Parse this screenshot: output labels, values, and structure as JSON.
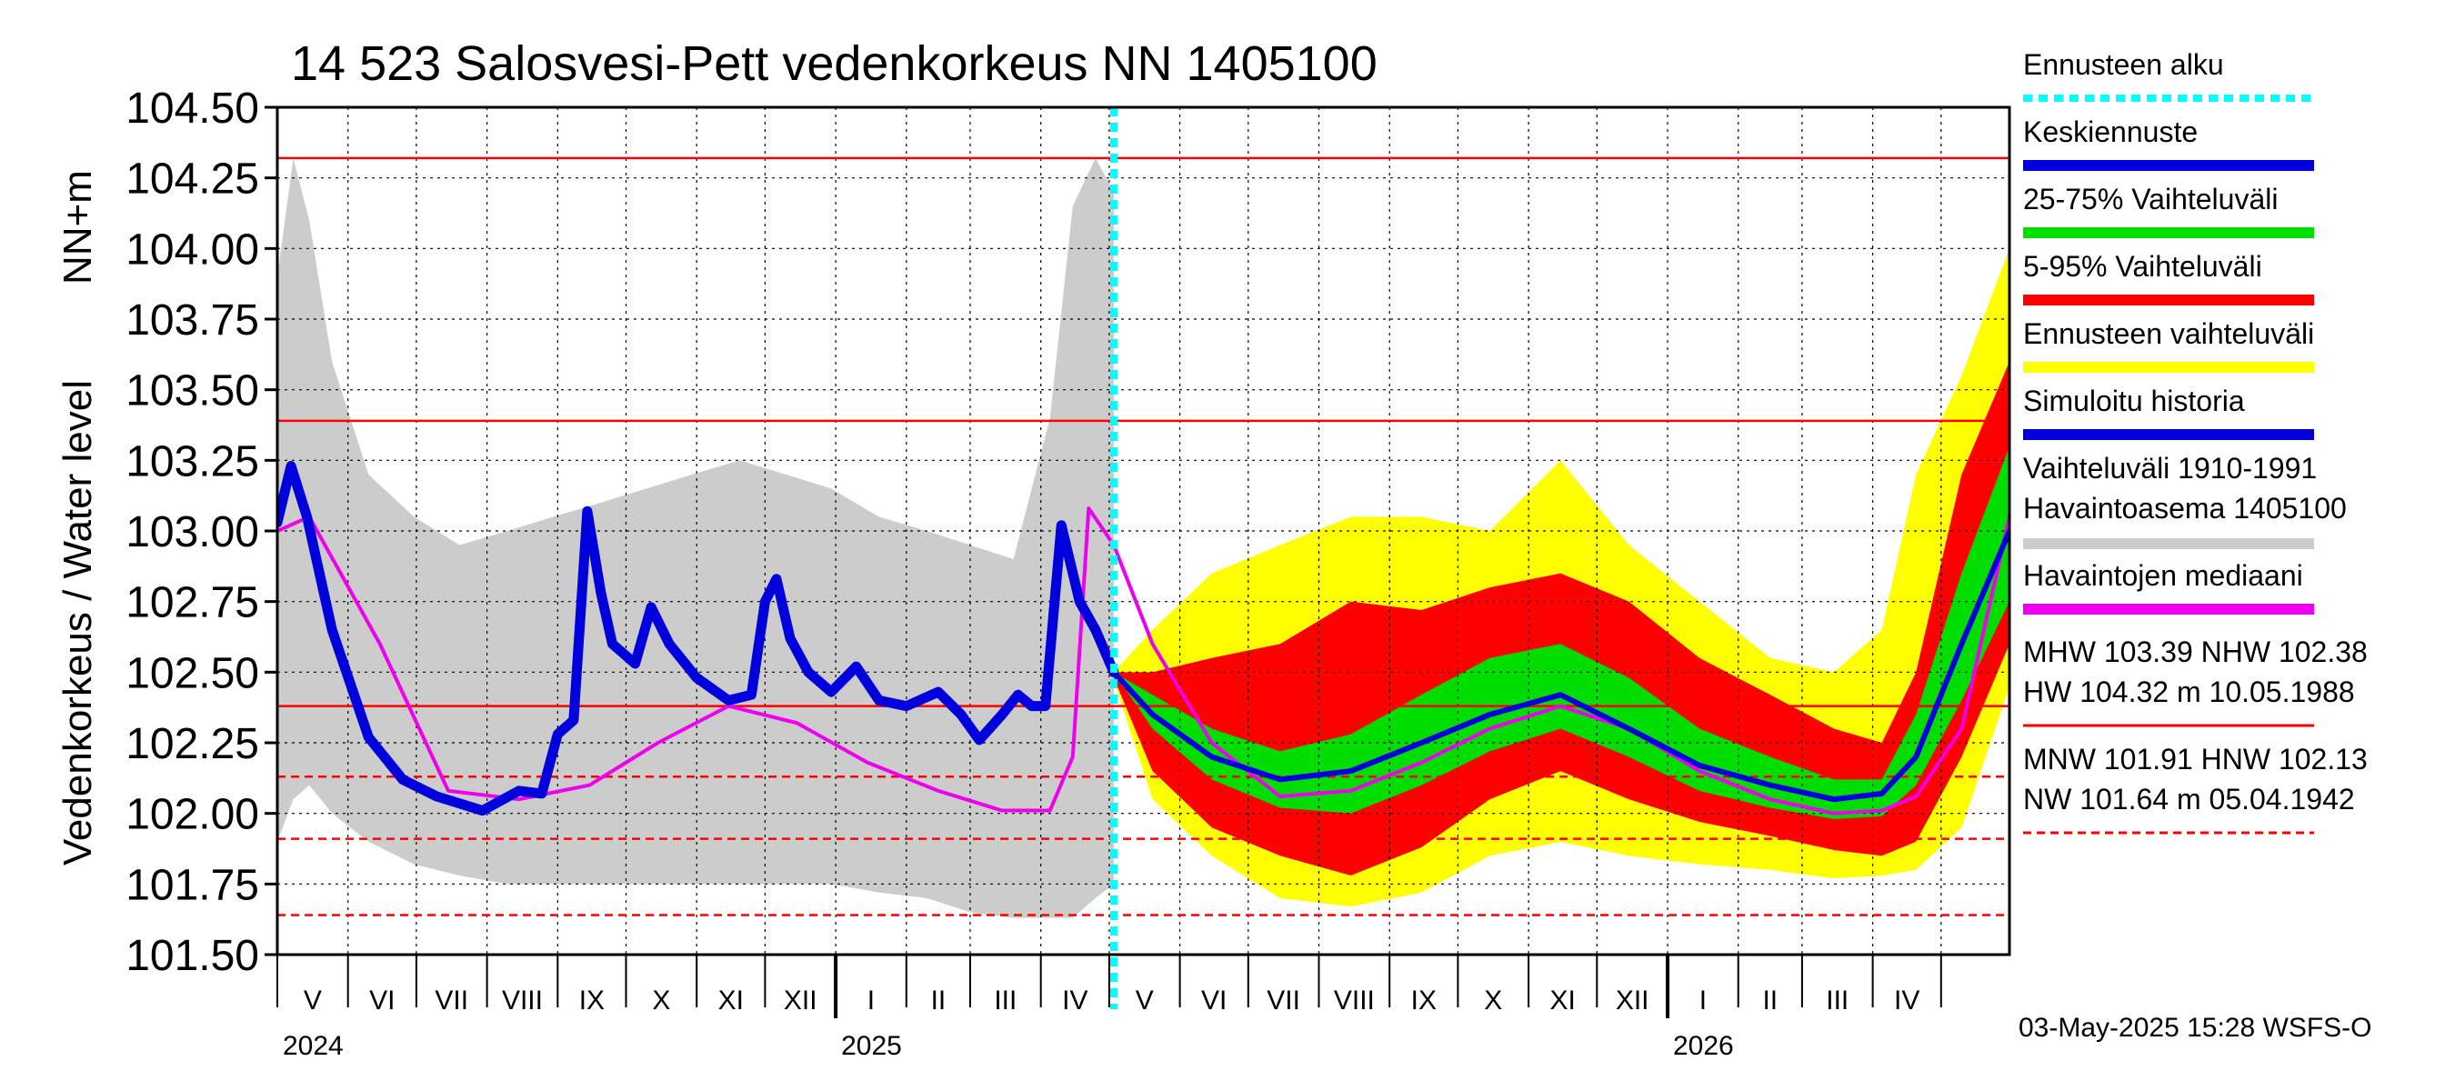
{
  "chart_data": {
    "type": "area",
    "title": "14 523 Salosvesi-Pett vedenkorkeus NN 1405100",
    "ylabel_unit": "NN+m",
    "ylabel": "Vedenkorkeus / Water level",
    "ylim": [
      101.5,
      104.5
    ],
    "yticks": [
      "104.50",
      "104.25",
      "104.00",
      "103.75",
      "103.50",
      "103.25",
      "103.00",
      "102.75",
      "102.50",
      "102.25",
      "102.00",
      "101.75",
      "101.50"
    ],
    "xlim": [
      "2024-05-01",
      "2026-05-31"
    ],
    "months": [
      "V",
      "VI",
      "VII",
      "VIII",
      "IX",
      "X",
      "XI",
      "XII",
      "I",
      "II",
      "III",
      "IV",
      "V",
      "VI",
      "VII",
      "VIII",
      "IX",
      "X",
      "XI",
      "XII",
      "I",
      "II",
      "III",
      "IV"
    ],
    "years": [
      "2024",
      "2025",
      "2026"
    ],
    "forecast_start": "2025-05-03",
    "grid": true,
    "legend_position": "right",
    "reference_lines": [
      {
        "label": "HW",
        "value": 104.32,
        "style": "solid"
      },
      {
        "label": "MHW",
        "value": 103.39,
        "style": "solid"
      },
      {
        "label": "NHW",
        "value": 102.38,
        "style": "solid"
      },
      {
        "label": "HNW",
        "value": 102.13,
        "style": "dashed"
      },
      {
        "label": "MNW",
        "value": 101.91,
        "style": "dashed"
      },
      {
        "label": "NW",
        "value": 101.64,
        "style": "dashed"
      }
    ],
    "series": [
      {
        "name": "Simuloitu historia",
        "color": "#0000dd",
        "x": [
          "2024-05-01",
          "2024-05-07",
          "2024-05-14",
          "2024-05-25",
          "2024-06-10",
          "2024-06-25",
          "2024-07-10",
          "2024-07-30",
          "2024-08-15",
          "2024-08-25",
          "2024-09-01",
          "2024-09-08",
          "2024-09-14",
          "2024-09-20",
          "2024-09-25",
          "2024-10-05",
          "2024-10-12",
          "2024-10-20",
          "2024-11-01",
          "2024-11-15",
          "2024-11-25",
          "2024-12-01",
          "2024-12-06",
          "2024-12-12",
          "2024-12-20",
          "2024-12-30",
          "2025-01-10",
          "2025-01-20",
          "2025-02-01",
          "2025-02-15",
          "2025-02-25",
          "2025-03-05",
          "2025-03-15",
          "2025-03-22",
          "2025-03-28",
          "2025-04-03",
          "2025-04-10",
          "2025-04-18",
          "2025-04-25",
          "2025-05-03"
        ],
        "y": [
          103.03,
          103.23,
          103.05,
          102.65,
          102.27,
          102.12,
          102.06,
          102.01,
          102.08,
          102.07,
          102.28,
          102.33,
          103.07,
          102.78,
          102.6,
          102.53,
          102.73,
          102.6,
          102.48,
          102.4,
          102.42,
          102.75,
          102.83,
          102.62,
          102.5,
          102.43,
          102.52,
          102.4,
          102.38,
          102.43,
          102.35,
          102.26,
          102.35,
          102.42,
          102.38,
          102.38,
          103.02,
          102.75,
          102.65,
          102.5
        ]
      },
      {
        "name": "Havaintojen mediaani",
        "color": "#ee00ee",
        "x": [
          "2024-05-01",
          "2024-05-15",
          "2024-06-15",
          "2024-07-15",
          "2024-08-15",
          "2024-09-15",
          "2024-10-15",
          "2024-11-15",
          "2024-12-15",
          "2025-01-15",
          "2025-02-15",
          "2025-03-15",
          "2025-04-05",
          "2025-04-15",
          "2025-04-22",
          "2025-05-03",
          "2025-05-20",
          "2025-06-15",
          "2025-07-15",
          "2025-08-15",
          "2025-09-15",
          "2025-10-15",
          "2025-11-15",
          "2025-12-15",
          "2026-01-15",
          "2026-02-15",
          "2026-03-15",
          "2026-04-05",
          "2026-04-20",
          "2026-05-10",
          "2026-05-31"
        ],
        "y": [
          103.0,
          103.05,
          102.6,
          102.08,
          102.05,
          102.1,
          102.25,
          102.38,
          102.32,
          102.18,
          102.08,
          102.01,
          102.01,
          102.2,
          103.08,
          102.95,
          102.6,
          102.25,
          102.06,
          102.08,
          102.18,
          102.3,
          102.38,
          102.3,
          102.15,
          102.05,
          102.0,
          102.01,
          102.06,
          102.3,
          103.05
        ]
      },
      {
        "name": "Keskiennuste",
        "color": "#0000dd",
        "x": [
          "2025-05-03",
          "2025-05-20",
          "2025-06-15",
          "2025-07-15",
          "2025-08-15",
          "2025-09-15",
          "2025-10-15",
          "2025-11-15",
          "2025-12-15",
          "2026-01-15",
          "2026-02-15",
          "2026-03-15",
          "2026-04-05",
          "2026-04-20",
          "2026-05-10",
          "2026-05-31"
        ],
        "y": [
          102.5,
          102.35,
          102.2,
          102.12,
          102.15,
          102.25,
          102.35,
          102.42,
          102.3,
          102.17,
          102.1,
          102.05,
          102.07,
          102.2,
          102.6,
          103.0
        ]
      },
      {
        "name": "25-75% Vaihteluväli",
        "color": "#00dd00",
        "x": [
          "2025-05-03",
          "2025-05-20",
          "2025-06-15",
          "2025-07-15",
          "2025-08-15",
          "2025-09-15",
          "2025-10-15",
          "2025-11-15",
          "2025-12-15",
          "2026-01-15",
          "2026-02-15",
          "2026-03-15",
          "2026-04-05",
          "2026-04-20",
          "2026-05-10",
          "2026-05-31"
        ],
        "y_low": [
          102.5,
          102.3,
          102.12,
          102.02,
          102.0,
          102.1,
          102.22,
          102.3,
          102.2,
          102.08,
          102.02,
          101.98,
          101.99,
          102.1,
          102.4,
          102.75
        ],
        "y_high": [
          102.5,
          102.42,
          102.3,
          102.22,
          102.28,
          102.42,
          102.55,
          102.6,
          102.48,
          102.3,
          102.2,
          102.12,
          102.12,
          102.35,
          102.85,
          103.3
        ]
      },
      {
        "name": "5-95% Vaihteluväli",
        "color": "#ff0000",
        "x": [
          "2025-05-03",
          "2025-05-20",
          "2025-06-15",
          "2025-07-15",
          "2025-08-15",
          "2025-09-15",
          "2025-10-15",
          "2025-11-15",
          "2025-12-15",
          "2026-01-15",
          "2026-02-15",
          "2026-03-15",
          "2026-04-05",
          "2026-04-20",
          "2026-05-10",
          "2026-05-31"
        ],
        "y_low": [
          102.48,
          102.15,
          101.95,
          101.85,
          101.78,
          101.88,
          102.05,
          102.15,
          102.05,
          101.97,
          101.92,
          101.87,
          101.85,
          101.9,
          102.2,
          102.6
        ],
        "y_high": [
          102.5,
          102.5,
          102.55,
          102.6,
          102.75,
          102.72,
          102.8,
          102.85,
          102.75,
          102.55,
          102.42,
          102.3,
          102.25,
          102.5,
          103.2,
          103.6
        ]
      },
      {
        "name": "Ennusteen vaihteluväli",
        "color": "#ffff00",
        "x": [
          "2025-05-03",
          "2025-05-20",
          "2025-06-15",
          "2025-07-15",
          "2025-08-15",
          "2025-09-15",
          "2025-10-15",
          "2025-11-15",
          "2025-12-15",
          "2026-01-15",
          "2026-02-15",
          "2026-03-15",
          "2026-04-05",
          "2026-04-20",
          "2026-05-10",
          "2026-05-31"
        ],
        "y_low": [
          102.47,
          102.05,
          101.85,
          101.7,
          101.67,
          101.72,
          101.85,
          101.9,
          101.85,
          101.82,
          101.8,
          101.77,
          101.78,
          101.8,
          101.95,
          102.45
        ],
        "y_high": [
          102.5,
          102.65,
          102.85,
          102.95,
          103.05,
          103.05,
          103.0,
          103.25,
          102.95,
          102.75,
          102.55,
          102.5,
          102.65,
          103.2,
          103.55,
          104.0
        ]
      },
      {
        "name": "Vaihteluväli 1910-1991 Havaintoasema 1405100",
        "color": "#cccccc",
        "x": [
          "2024-05-01",
          "2024-05-08",
          "2024-05-15",
          "2024-05-25",
          "2024-06-10",
          "2024-06-30",
          "2024-07-20",
          "2024-08-10",
          "2024-08-30",
          "2024-09-20",
          "2024-10-10",
          "2024-10-30",
          "2024-11-20",
          "2024-12-10",
          "2024-12-30",
          "2025-01-20",
          "2025-02-10",
          "2025-03-01",
          "2025-03-20",
          "2025-04-05",
          "2025-04-15",
          "2025-04-25",
          "2025-05-03"
        ],
        "y_low": [
          101.9,
          102.05,
          102.1,
          102.0,
          101.9,
          101.82,
          101.78,
          101.75,
          101.75,
          101.75,
          101.75,
          101.75,
          101.75,
          101.75,
          101.75,
          101.72,
          101.7,
          101.65,
          101.63,
          101.63,
          101.63,
          101.7,
          101.75
        ],
        "y_high": [
          103.9,
          104.32,
          104.1,
          103.6,
          103.2,
          103.05,
          102.95,
          103.0,
          103.05,
          103.1,
          103.15,
          103.2,
          103.25,
          103.2,
          103.15,
          103.05,
          103.0,
          102.95,
          102.9,
          103.4,
          104.15,
          104.32,
          104.2
        ]
      }
    ]
  },
  "legend": {
    "items": [
      {
        "label": "Ennusteen alku",
        "color": "#00ffff",
        "style": "dotted"
      },
      {
        "label": "Keskiennuste",
        "color": "#0000dd",
        "style": "solid"
      },
      {
        "label": "25-75% Vaihteluväli",
        "color": "#00dd00",
        "style": "solid"
      },
      {
        "label": "5-95% Vaihteluväli",
        "color": "#ff0000",
        "style": "solid"
      },
      {
        "label": "Ennusteen vaihteluväli",
        "color": "#ffff00",
        "style": "solid"
      },
      {
        "label": "Simuloitu historia",
        "color": "#0000dd",
        "style": "solid"
      },
      {
        "label": "Vaihteluväli 1910-1991",
        "label2": " Havaintoasema 1405100",
        "color": "#cccccc",
        "style": "solid"
      },
      {
        "label": "Havaintojen mediaani",
        "color": "#ee00ee",
        "style": "solid"
      }
    ],
    "stats": [
      {
        "label": "MHW 103.39 NHW 102.38",
        "label2": "HW 104.32 m 10.05.1988",
        "color": "#ff0000",
        "style": "solid"
      },
      {
        "label": "MNW 101.91 HNW 102.13",
        "label2": "NW 101.64 m 05.04.1942",
        "color": "#ff0000",
        "style": "dashed"
      }
    ]
  },
  "footer": "03-May-2025 15:28 WSFS-O"
}
